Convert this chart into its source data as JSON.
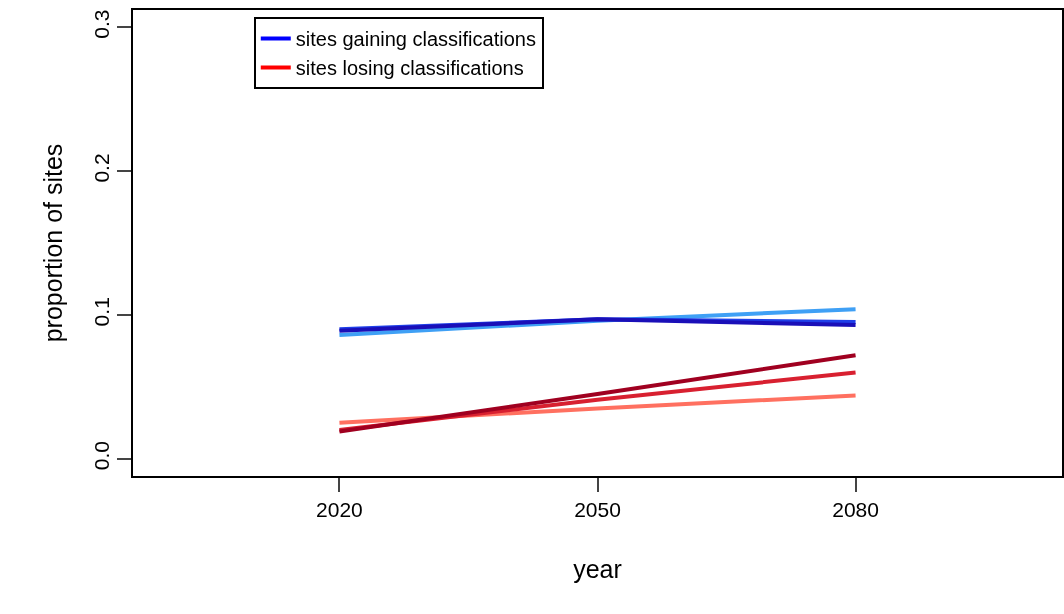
{
  "chart_data": {
    "type": "line",
    "xlabel": "year",
    "ylabel": "proportion of sites",
    "x": [
      2020,
      2050,
      2080
    ],
    "series": [
      {
        "color": "#3fa0f5",
        "values": [
          0.086,
          0.096,
          0.104
        ]
      },
      {
        "color": "#1f3fe8",
        "values": [
          0.09,
          0.097,
          0.095
        ]
      },
      {
        "color": "#1a0fb8",
        "values": [
          0.089,
          0.097,
          0.093
        ]
      },
      {
        "color": "#ff7060",
        "values": [
          0.025,
          0.035,
          0.044
        ]
      },
      {
        "color": "#d82030",
        "values": [
          0.02,
          0.041,
          0.06
        ]
      },
      {
        "color": "#a00020",
        "values": [
          0.019,
          0.045,
          0.072
        ]
      },
      {
        "name": "sites gaining classifications",
        "color": "#0000ff",
        "values": [
          null,
          null,
          null
        ]
      },
      {
        "name": "sites losing classifications",
        "color": "#ff0000",
        "values": [
          null,
          null,
          null
        ]
      }
    ],
    "xlim": [
      1996,
      2104
    ],
    "xticks": [
      2020,
      2050,
      2080
    ],
    "ylim": [
      -0.012,
      0.312
    ],
    "yticks": [
      {
        "value": 0,
        "label": "0.0"
      },
      0.1,
      0.2,
      0.3
    ],
    "grid": false,
    "legend": "top left",
    "marker": "none",
    "line_style": "solid"
  }
}
